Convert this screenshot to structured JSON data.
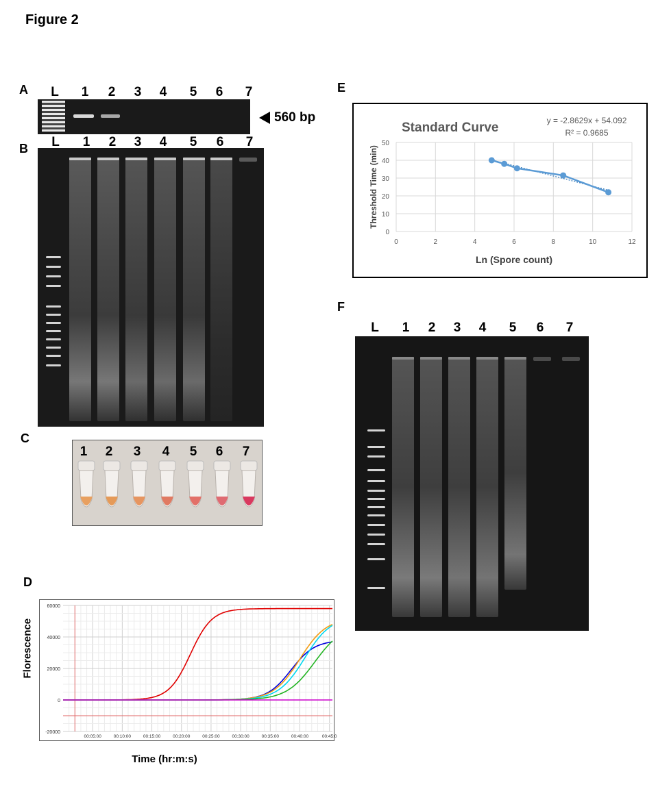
{
  "figure_title": "Figure 2",
  "panels": {
    "A": {
      "letter": "A",
      "lanes": [
        "L",
        "1",
        "2",
        "3",
        "4",
        "5",
        "6",
        "7"
      ],
      "marker_label": "560 bp"
    },
    "B": {
      "letter": "B",
      "lanes": [
        "L",
        "1",
        "2",
        "3",
        "4",
        "5",
        "6",
        "7"
      ]
    },
    "C": {
      "letter": "C",
      "lanes": [
        "1",
        "2",
        "3",
        "4",
        "5",
        "6",
        "7"
      ],
      "tube_colors": [
        "#e8a060",
        "#e59a58",
        "#e69560",
        "#e07a62",
        "#e27068",
        "#df6b72",
        "#d9395f"
      ]
    },
    "D": {
      "letter": "D",
      "xlabel": "Time (hr:m:s)",
      "ylabel": "Florescence"
    },
    "E": {
      "letter": "E"
    },
    "F": {
      "letter": "F",
      "lanes": [
        "L",
        "1",
        "2",
        "3",
        "4",
        "5",
        "6",
        "7"
      ]
    }
  },
  "chart_data": [
    {
      "panel": "E",
      "type": "line",
      "title": "Standard Curve",
      "xlabel": "Ln (Spore count)",
      "ylabel": "Threshold Time (min)",
      "xlim": [
        0,
        12
      ],
      "ylim": [
        0,
        50
      ],
      "xticks": [
        0,
        2,
        4,
        6,
        8,
        10,
        12
      ],
      "yticks": [
        0,
        10,
        20,
        30,
        40,
        50
      ],
      "grid": true,
      "series": [
        {
          "x": [
            4.86,
            5.5,
            6.15,
            8.5,
            10.8
          ],
          "y": [
            40,
            38,
            35.5,
            31.5,
            22
          ]
        }
      ],
      "trendline": {
        "slope": -2.8629,
        "intercept": 54.092
      },
      "annotations": [
        "y = -2.8629x + 54.092",
        "R² = 0.9685"
      ],
      "colors": {
        "series": "#5b9bd5",
        "trend": "#2e75b6"
      }
    },
    {
      "panel": "D",
      "type": "line",
      "xlabel": "Time (hr:m:s)",
      "ylabel": "Florescence",
      "xlim": [
        0,
        45.5
      ],
      "ylim": [
        -20000,
        60000
      ],
      "xticks": [
        5,
        10,
        15,
        20,
        25,
        30,
        35,
        40,
        45
      ],
      "xtick_labels": [
        "00:05:00",
        "00:10:00",
        "00:15:00",
        "00:20:00",
        "00:25:00",
        "00:30:00",
        "00:35:00",
        "00:40:00",
        "00:45:0"
      ],
      "yticks": [
        -20000,
        0,
        20000,
        40000,
        60000
      ],
      "ytick_labels": [
        "-20000",
        "0",
        "20000",
        "40000",
        "60000"
      ],
      "grid": true,
      "threshold": -10000,
      "vline": 2,
      "series": [
        {
          "color": "#e00000",
          "plateau": 58000,
          "midpoint": 21.5,
          "rate": 0.55
        },
        {
          "color": "#0000dd",
          "plateau": 38000,
          "midpoint": 38.5,
          "rate": 0.5
        },
        {
          "color": "#f39c12",
          "plateau": 52000,
          "midpoint": 40.0,
          "rate": 0.45
        },
        {
          "color": "#00d8f0",
          "plateau": 53000,
          "midpoint": 40.8,
          "rate": 0.45
        },
        {
          "color": "#22b422",
          "plateau": 48000,
          "midpoint": 42.5,
          "rate": 0.42
        },
        {
          "color": "#cc00cc",
          "plateau": 0,
          "midpoint": 0,
          "rate": 0
        }
      ],
      "colors": {
        "threshold": "#e06666",
        "vline": "#e06666",
        "grid": "#dddddd"
      }
    }
  ]
}
